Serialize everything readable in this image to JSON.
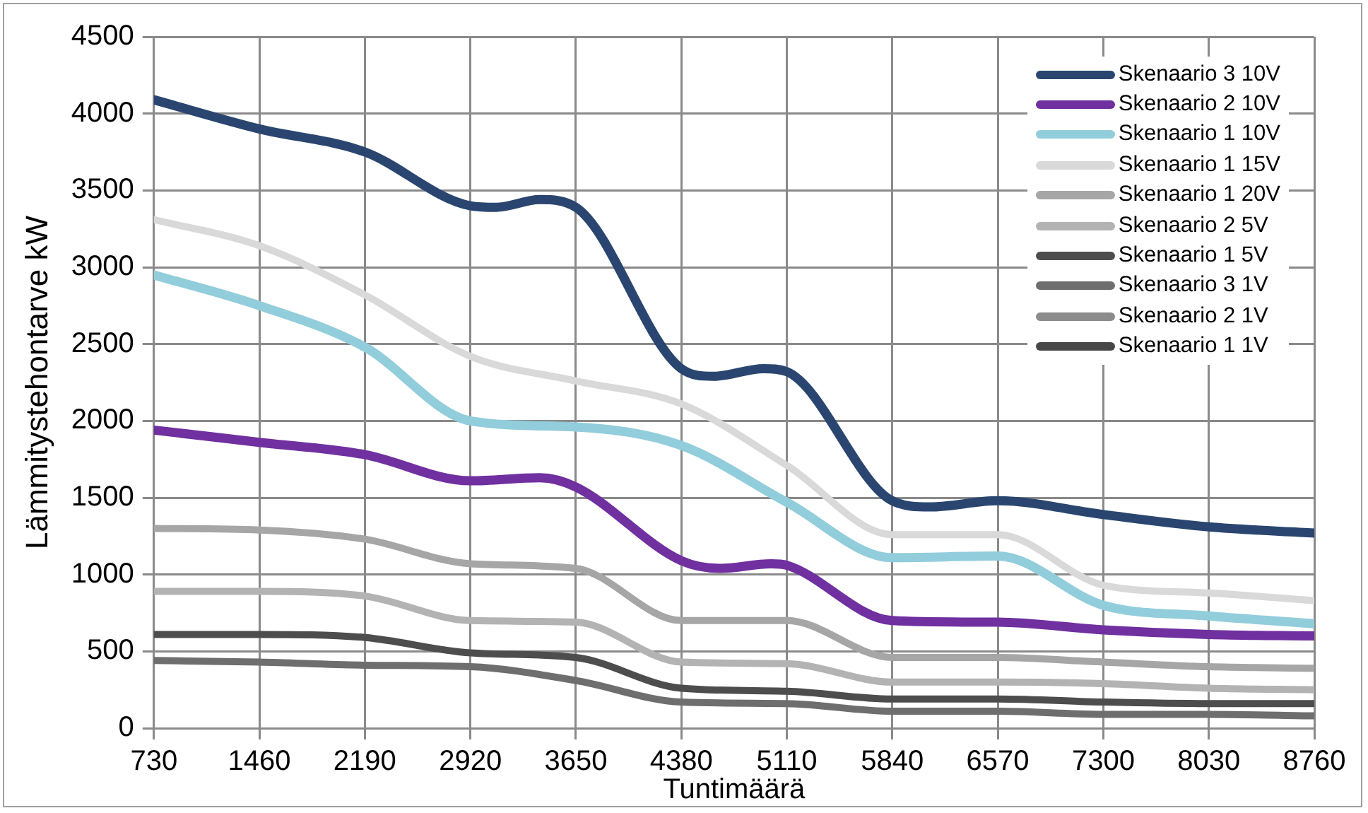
{
  "chart_data": {
    "type": "line",
    "xlabel": "Tuntimäärä",
    "ylabel": "Lämmitystehontarve kW",
    "x": [
      730,
      1460,
      2190,
      2920,
      3650,
      4380,
      5110,
      5840,
      6570,
      7300,
      8030,
      8760
    ],
    "xlim": [
      730,
      8760
    ],
    "xticks": [
      730,
      1460,
      2190,
      2920,
      3650,
      4380,
      5110,
      5840,
      6570,
      7300,
      8030,
      8760
    ],
    "ylim": [
      0,
      4500
    ],
    "yticks": [
      0,
      500,
      1000,
      1500,
      2000,
      2500,
      3000,
      3500,
      4000,
      4500
    ],
    "grid": true,
    "legend": "top right",
    "marker": "none",
    "line_style": "solid",
    "series": [
      {
        "name": "Skenaario 3 10V",
        "color": "#2a4670",
        "x": [
          730,
          1460,
          2190,
          2920,
          3100,
          3400,
          3650,
          4380,
          4600,
          4950,
          5110,
          5840,
          6100,
          6570,
          7300,
          8030,
          8760
        ],
        "values": [
          4090,
          3900,
          3750,
          3400,
          3390,
          3440,
          3390,
          2340,
          2290,
          2340,
          2320,
          1480,
          1440,
          1480,
          1390,
          1310,
          1270
        ]
      },
      {
        "name": "Skenaario 2 10V",
        "color": "#7030a0",
        "x": [
          730,
          1460,
          2190,
          2920,
          3400,
          3650,
          4380,
          4650,
          5000,
          5110,
          5840,
          6570,
          7300,
          8030,
          8760
        ],
        "values": [
          1940,
          1860,
          1780,
          1610,
          1630,
          1570,
          1090,
          1040,
          1070,
          1060,
          700,
          690,
          640,
          610,
          600
        ]
      },
      {
        "name": "Skenaario 1 10V",
        "color": "#92cddc",
        "x": [
          730,
          1460,
          2190,
          2920,
          3650,
          4380,
          5110,
          5840,
          6570,
          7300,
          8030,
          8760
        ],
        "values": [
          2950,
          2750,
          2480,
          2000,
          1960,
          1840,
          1470,
          1110,
          1120,
          800,
          730,
          680
        ]
      },
      {
        "name": "Skenaario 1 15V",
        "color": "#d9d9d9",
        "values": [
          3310,
          3140,
          2820,
          2420,
          2260,
          2110,
          1710,
          1260,
          1260,
          930,
          880,
          830
        ]
      },
      {
        "name": "Skenaario 1 20V",
        "color": "#a6a6a6",
        "values": [
          1300,
          1290,
          1230,
          1070,
          1040,
          700,
          700,
          460,
          460,
          430,
          400,
          390
        ]
      },
      {
        "name": "Skenaario 2 5V",
        "color": "#b3b3b3",
        "values": [
          890,
          890,
          860,
          700,
          690,
          430,
          420,
          300,
          300,
          290,
          260,
          250
        ]
      },
      {
        "name": "Skenaario 1 5V",
        "color": "#4d4d4d",
        "values": [
          610,
          610,
          590,
          490,
          460,
          260,
          240,
          190,
          190,
          170,
          160,
          160
        ]
      },
      {
        "name": "Skenaario 3 1V",
        "color": "#6e6e6e",
        "values": [
          440,
          430,
          410,
          400,
          310,
          170,
          160,
          110,
          110,
          90,
          90,
          80
        ]
      },
      {
        "name": "Skenaario 2 1V",
        "color": "#8c8c8c",
        "values": [
          null,
          null,
          null,
          null,
          null,
          null,
          null,
          null,
          null,
          null,
          null,
          null
        ]
      },
      {
        "name": "Skenaario 1 1V",
        "color": "#474747",
        "values": [
          null,
          null,
          null,
          null,
          null,
          null,
          null,
          null,
          null,
          null,
          null,
          null
        ]
      }
    ]
  }
}
